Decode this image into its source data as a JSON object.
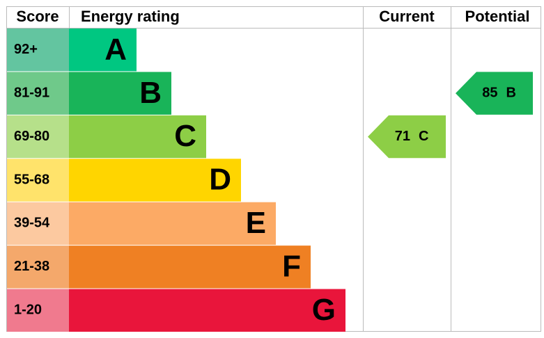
{
  "chart_data": {
    "type": "epc",
    "headers": [
      "Score",
      "Energy rating",
      "Current",
      "Potential"
    ],
    "bands": [
      {
        "score": "92+",
        "rating": "A",
        "color": "#00c781",
        "score_color": "#63c5a0"
      },
      {
        "score": "81-91",
        "rating": "B",
        "color": "#19b459",
        "score_color": "#6fc98a"
      },
      {
        "score": "69-80",
        "rating": "C",
        "color": "#8dce46",
        "score_color": "#b6e08a"
      },
      {
        "score": "55-68",
        "rating": "D",
        "color": "#ffd500",
        "score_color": "#ffe36b"
      },
      {
        "score": "39-54",
        "rating": "E",
        "color": "#fcaa65",
        "score_color": "#fcc9a0"
      },
      {
        "score": "21-38",
        "rating": "F",
        "color": "#ef8023",
        "score_color": "#f4a86b"
      },
      {
        "score": "1-20",
        "rating": "G",
        "color": "#e9153b",
        "score_color": "#f07a8e"
      }
    ],
    "current": {
      "value": 71,
      "rating": "C"
    },
    "potential": {
      "value": 85,
      "rating": "B"
    }
  }
}
